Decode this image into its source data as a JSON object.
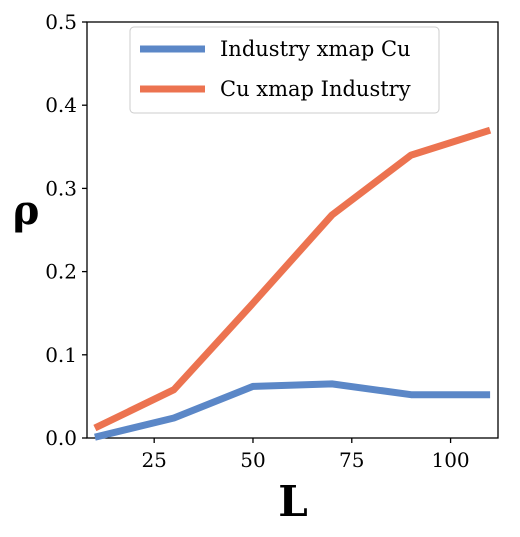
{
  "chart_data": {
    "type": "line",
    "xlabel": "L",
    "ylabel": "ρ",
    "xlim": [
      8,
      112
    ],
    "ylim": [
      0,
      0.5
    ],
    "x_ticks": [
      25,
      50,
      75,
      100
    ],
    "x_tick_labels": [
      "25",
      "50",
      "75",
      "100"
    ],
    "y_ticks": [
      0.0,
      0.1,
      0.2,
      0.3,
      0.4,
      0.5
    ],
    "y_tick_labels": [
      "0.0",
      "0.1",
      "0.2",
      "0.3",
      "0.4",
      "0.5"
    ],
    "legend_position": "top-center",
    "grid": false,
    "series": [
      {
        "name": "Industry xmap Cu",
        "color": "#5b87c7",
        "x": [
          10,
          30,
          50,
          70,
          90,
          110
        ],
        "y": [
          0.001,
          0.024,
          0.062,
          0.065,
          0.052,
          0.052
        ]
      },
      {
        "name": "Cu xmap Industry",
        "color": "#ec7350",
        "x": [
          10,
          30,
          50,
          70,
          90,
          110
        ],
        "y": [
          0.012,
          0.058,
          0.162,
          0.268,
          0.34,
          0.37
        ]
      }
    ]
  }
}
